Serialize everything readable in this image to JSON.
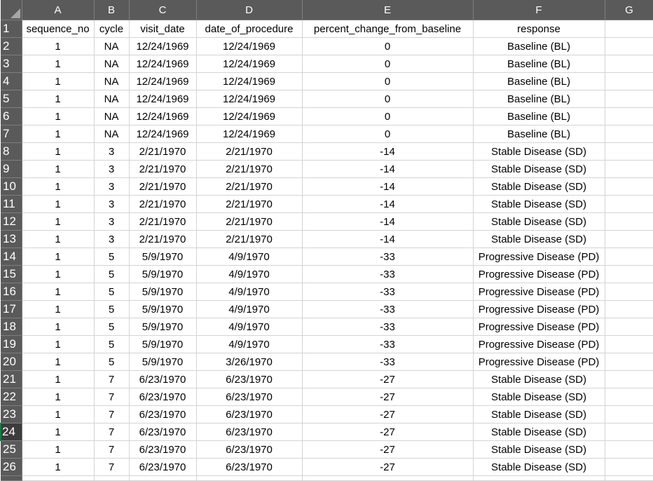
{
  "columns": [
    "A",
    "B",
    "C",
    "D",
    "E",
    "F",
    "G"
  ],
  "headers": [
    "sequence_no",
    "cycle",
    "visit_date",
    "date_of_procedure",
    "percent_change_from_baseline",
    "response"
  ],
  "selected_row": "24",
  "rows": [
    {
      "n": "2",
      "cells": [
        "1",
        "NA",
        "12/24/1969",
        "12/24/1969",
        "0",
        "Baseline (BL)"
      ]
    },
    {
      "n": "3",
      "cells": [
        "1",
        "NA",
        "12/24/1969",
        "12/24/1969",
        "0",
        "Baseline (BL)"
      ]
    },
    {
      "n": "4",
      "cells": [
        "1",
        "NA",
        "12/24/1969",
        "12/24/1969",
        "0",
        "Baseline (BL)"
      ]
    },
    {
      "n": "5",
      "cells": [
        "1",
        "NA",
        "12/24/1969",
        "12/24/1969",
        "0",
        "Baseline (BL)"
      ]
    },
    {
      "n": "6",
      "cells": [
        "1",
        "NA",
        "12/24/1969",
        "12/24/1969",
        "0",
        "Baseline (BL)"
      ]
    },
    {
      "n": "7",
      "cells": [
        "1",
        "NA",
        "12/24/1969",
        "12/24/1969",
        "0",
        "Baseline (BL)"
      ]
    },
    {
      "n": "8",
      "cells": [
        "1",
        "3",
        "2/21/1970",
        "2/21/1970",
        "-14",
        "Stable Disease (SD)"
      ]
    },
    {
      "n": "9",
      "cells": [
        "1",
        "3",
        "2/21/1970",
        "2/21/1970",
        "-14",
        "Stable Disease (SD)"
      ]
    },
    {
      "n": "10",
      "cells": [
        "1",
        "3",
        "2/21/1970",
        "2/21/1970",
        "-14",
        "Stable Disease (SD)"
      ]
    },
    {
      "n": "11",
      "cells": [
        "1",
        "3",
        "2/21/1970",
        "2/21/1970",
        "-14",
        "Stable Disease (SD)"
      ]
    },
    {
      "n": "12",
      "cells": [
        "1",
        "3",
        "2/21/1970",
        "2/21/1970",
        "-14",
        "Stable Disease (SD)"
      ]
    },
    {
      "n": "13",
      "cells": [
        "1",
        "3",
        "2/21/1970",
        "2/21/1970",
        "-14",
        "Stable Disease (SD)"
      ]
    },
    {
      "n": "14",
      "cells": [
        "1",
        "5",
        "5/9/1970",
        "4/9/1970",
        "-33",
        "Progressive Disease (PD)"
      ]
    },
    {
      "n": "15",
      "cells": [
        "1",
        "5",
        "5/9/1970",
        "4/9/1970",
        "-33",
        "Progressive Disease (PD)"
      ]
    },
    {
      "n": "16",
      "cells": [
        "1",
        "5",
        "5/9/1970",
        "4/9/1970",
        "-33",
        "Progressive Disease (PD)"
      ]
    },
    {
      "n": "17",
      "cells": [
        "1",
        "5",
        "5/9/1970",
        "4/9/1970",
        "-33",
        "Progressive Disease (PD)"
      ]
    },
    {
      "n": "18",
      "cells": [
        "1",
        "5",
        "5/9/1970",
        "4/9/1970",
        "-33",
        "Progressive Disease (PD)"
      ]
    },
    {
      "n": "19",
      "cells": [
        "1",
        "5",
        "5/9/1970",
        "4/9/1970",
        "-33",
        "Progressive Disease (PD)"
      ]
    },
    {
      "n": "20",
      "cells": [
        "1",
        "5",
        "5/9/1970",
        "3/26/1970",
        "-33",
        "Progressive Disease (PD)"
      ]
    },
    {
      "n": "21",
      "cells": [
        "1",
        "7",
        "6/23/1970",
        "6/23/1970",
        "-27",
        "Stable Disease (SD)"
      ]
    },
    {
      "n": "22",
      "cells": [
        "1",
        "7",
        "6/23/1970",
        "6/23/1970",
        "-27",
        "Stable Disease (SD)"
      ]
    },
    {
      "n": "23",
      "cells": [
        "1",
        "7",
        "6/23/1970",
        "6/23/1970",
        "-27",
        "Stable Disease (SD)"
      ]
    },
    {
      "n": "24",
      "cells": [
        "1",
        "7",
        "6/23/1970",
        "6/23/1970",
        "-27",
        "Stable Disease (SD)"
      ]
    },
    {
      "n": "25",
      "cells": [
        "1",
        "7",
        "6/23/1970",
        "6/23/1970",
        "-27",
        "Stable Disease (SD)"
      ]
    },
    {
      "n": "26",
      "cells": [
        "1",
        "7",
        "6/23/1970",
        "6/23/1970",
        "-27",
        "Stable Disease (SD)"
      ]
    }
  ]
}
